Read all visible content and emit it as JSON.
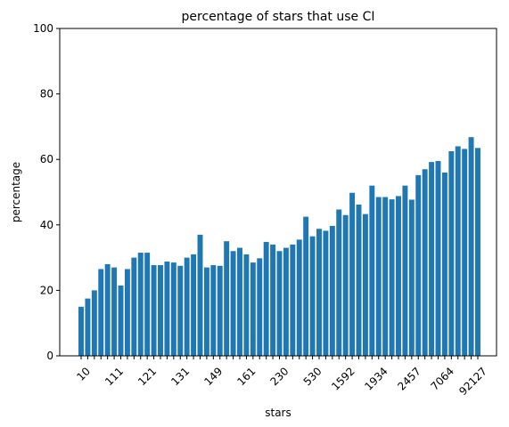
{
  "chart_data": {
    "type": "bar",
    "title": "percentage of stars that use CI",
    "xlabel": "stars",
    "ylabel": "percentage",
    "ylim": [
      0,
      100
    ],
    "yticks": [
      0,
      20,
      40,
      60,
      80,
      100
    ],
    "x_tick_labels": [
      "10",
      "111",
      "121",
      "131",
      "149",
      "161",
      "230",
      "530",
      "1592",
      "1934",
      "2457",
      "7064",
      "92127"
    ],
    "x_tick_every": 5,
    "grid": false,
    "legend": "none",
    "colors": {
      "bar": "#1f77b4"
    },
    "values": [
      15.0,
      17.5,
      20.0,
      26.5,
      28.0,
      27.0,
      21.5,
      26.5,
      30.0,
      31.5,
      31.5,
      27.7,
      27.7,
      28.8,
      28.5,
      27.5,
      30.0,
      31.0,
      37.0,
      27.0,
      27.7,
      27.5,
      35.0,
      32.0,
      33.0,
      31.0,
      28.5,
      29.8,
      34.8,
      34.0,
      32.0,
      33.0,
      34.0,
      35.5,
      42.5,
      36.5,
      38.8,
      38.2,
      39.7,
      44.7,
      43.0,
      49.8,
      46.2,
      43.3,
      52.0,
      48.5,
      48.5,
      47.8,
      48.8,
      52.0,
      47.7,
      55.2,
      57.0,
      59.2,
      59.5,
      56.0,
      62.5,
      64.0,
      63.2,
      66.8,
      63.5
    ]
  }
}
